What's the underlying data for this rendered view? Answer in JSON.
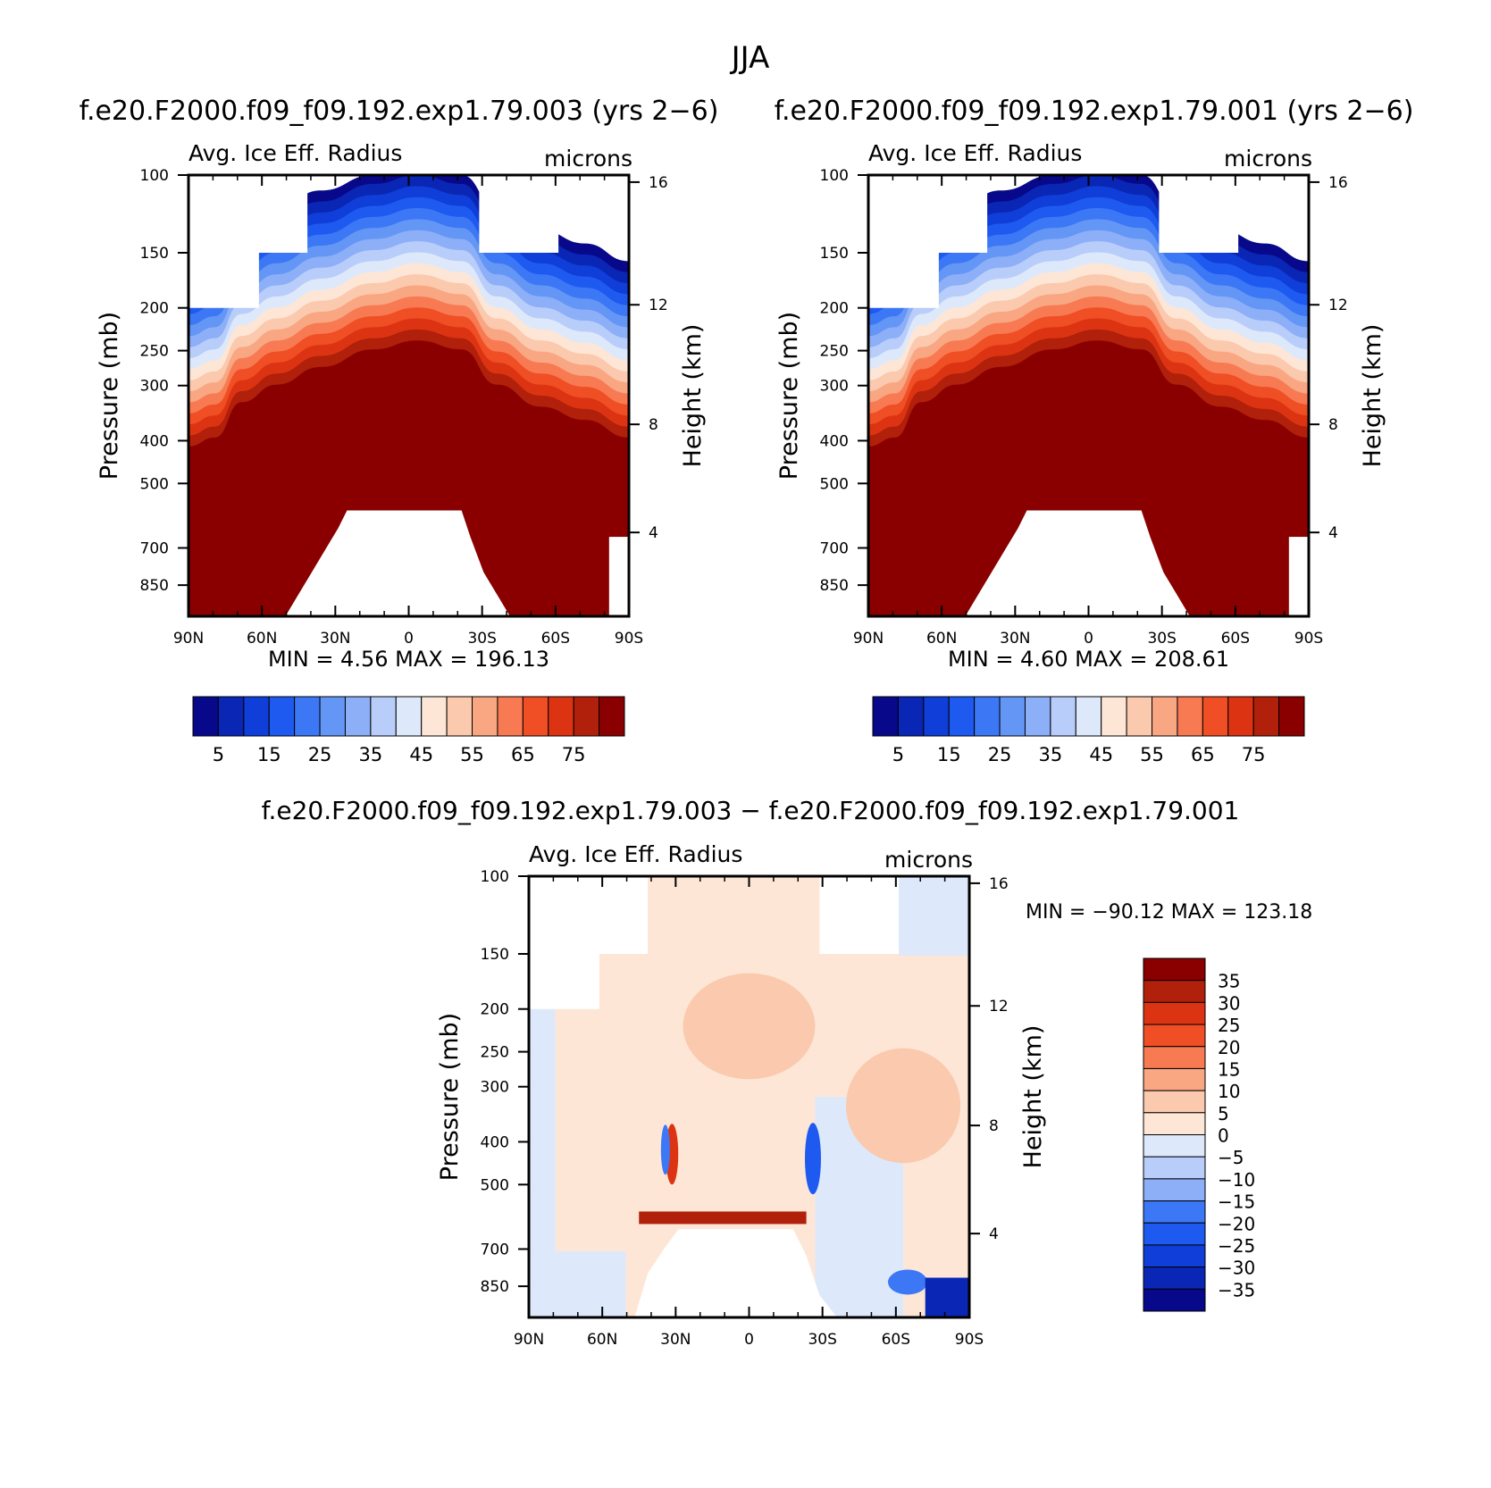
{
  "figure_title": "JJA",
  "diff_title": "f.e20.F2000.f09_f09.192.exp1.79.003 − f.e20.F2000.f09_f09.192.exp1.79.001",
  "chart_data": [
    {
      "type": "heatmap",
      "title": "f.e20.F2000.f09_f09.192.exp1.79.003 (yrs 2−6)",
      "variable": "Avg. Ice Eff. Radius",
      "units": "microns",
      "ylabel": "Pressure (mb)",
      "ylabel_right": "Height (km)",
      "xticks": [
        "90N",
        "60N",
        "30N",
        "0",
        "30S",
        "60S",
        "90S"
      ],
      "yticks": [
        "100",
        "150",
        "200",
        "250",
        "300",
        "400",
        "500",
        "700",
        "850"
      ],
      "yticks_right": [
        "16",
        "12",
        "8",
        "4"
      ],
      "min_label": "MIN =",
      "min": "4.56",
      "max_label": "MAX =",
      "max": "196.13",
      "colorbar_levels": [
        "5",
        "15",
        "25",
        "35",
        "45",
        "55",
        "65",
        "75"
      ],
      "colorbar_colors": [
        "#08088a",
        "#0a26b4",
        "#0f3ed8",
        "#1e5af0",
        "#3c78f5",
        "#6496f5",
        "#8caff8",
        "#b9cdfa",
        "#dde9fb",
        "#fde6d6",
        "#fbc9ad",
        "#f9a683",
        "#f77a52",
        "#f04e24",
        "#dc3412",
        "#b0200a",
        "#8a0000"
      ]
    },
    {
      "type": "heatmap",
      "title": "f.e20.F2000.f09_f09.192.exp1.79.001 (yrs 2−6)",
      "variable": "Avg. Ice Eff. Radius",
      "units": "microns",
      "ylabel": "Pressure (mb)",
      "ylabel_right": "Height (km)",
      "xticks": [
        "90N",
        "60N",
        "30N",
        "0",
        "30S",
        "60S",
        "90S"
      ],
      "yticks": [
        "100",
        "150",
        "200",
        "250",
        "300",
        "400",
        "500",
        "700",
        "850"
      ],
      "yticks_right": [
        "16",
        "12",
        "8",
        "4"
      ],
      "min_label": "MIN =",
      "min": "4.60",
      "max_label": "MAX =",
      "max": "208.61",
      "colorbar_levels": [
        "5",
        "15",
        "25",
        "35",
        "45",
        "55",
        "65",
        "75"
      ],
      "colorbar_colors": [
        "#08088a",
        "#0a26b4",
        "#0f3ed8",
        "#1e5af0",
        "#3c78f5",
        "#6496f5",
        "#8caff8",
        "#b9cdfa",
        "#dde9fb",
        "#fde6d6",
        "#fbc9ad",
        "#f9a683",
        "#f77a52",
        "#f04e24",
        "#dc3412",
        "#b0200a",
        "#8a0000"
      ]
    },
    {
      "type": "heatmap",
      "title": "f.e20.F2000.f09_f09.192.exp1.79.003 − f.e20.F2000.f09_f09.192.exp1.79.001",
      "variable": "Avg. Ice Eff. Radius",
      "units": "microns",
      "ylabel": "Pressure (mb)",
      "ylabel_right": "Height (km)",
      "xticks": [
        "90N",
        "60N",
        "30N",
        "0",
        "30S",
        "60S",
        "90S"
      ],
      "yticks": [
        "100",
        "150",
        "200",
        "250",
        "300",
        "400",
        "500",
        "700",
        "850"
      ],
      "yticks_right": [
        "16",
        "12",
        "8",
        "4"
      ],
      "min_label": "MIN =",
      "min": "−90.12",
      "max_label": "MAX =",
      "max": "123.18",
      "colorbar_levels": [
        "35",
        "30",
        "25",
        "20",
        "15",
        "10",
        "5",
        "0",
        "−5",
        "−10",
        "−15",
        "−20",
        "−25",
        "−30",
        "−35"
      ],
      "colorbar_colors": [
        "#8a0000",
        "#b0200a",
        "#dc3412",
        "#f04e24",
        "#f77a52",
        "#f9a683",
        "#fbc9ad",
        "#fde6d6",
        "#dde9fb",
        "#b9cdfa",
        "#8caff8",
        "#3c78f5",
        "#1e5af0",
        "#0f3ed8",
        "#0a26b4",
        "#08088a"
      ]
    }
  ]
}
